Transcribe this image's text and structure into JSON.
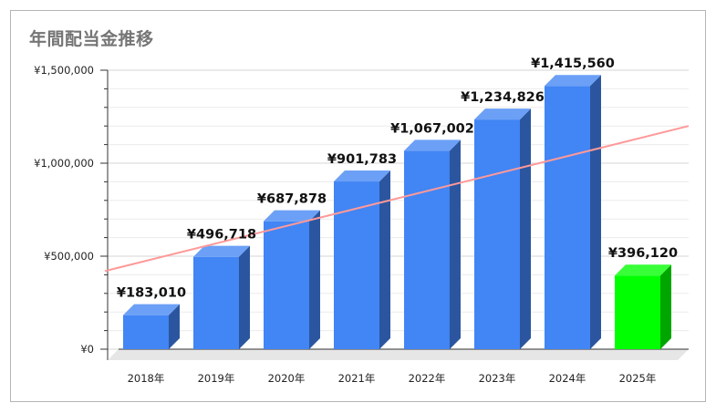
{
  "chart_data": {
    "type": "bar",
    "title": "年間配当金推移",
    "categories": [
      "2018年",
      "2019年",
      "2020年",
      "2021年",
      "2022年",
      "2023年",
      "2024年",
      "2025年"
    ],
    "values": [
      183010,
      496718,
      687878,
      901783,
      1067002,
      1234826,
      1415560,
      396120
    ],
    "data_labels": [
      "¥183,010",
      "¥496,718",
      "¥687,878",
      "¥901,783",
      "¥1,067,002",
      "¥1,234,826",
      "¥1,415,560",
      "¥396,120"
    ],
    "y_ticks": [
      {
        "value": 0,
        "label": "¥0"
      },
      {
        "value": 500000,
        "label": "¥500,000"
      },
      {
        "value": 1000000,
        "label": "¥1,000,000"
      },
      {
        "value": 1500000,
        "label": "¥1,500,000"
      }
    ],
    "ylim": [
      0,
      1500000
    ],
    "grid": true,
    "three_d": true,
    "bar_colors": [
      "#4285f4",
      "#4285f4",
      "#4285f4",
      "#4285f4",
      "#4285f4",
      "#4285f4",
      "#4285f4",
      "#00ff00"
    ],
    "trendline": {
      "type": "linear",
      "color": "#ff9999",
      "start_value": 420000,
      "end_value": 1200000
    }
  }
}
